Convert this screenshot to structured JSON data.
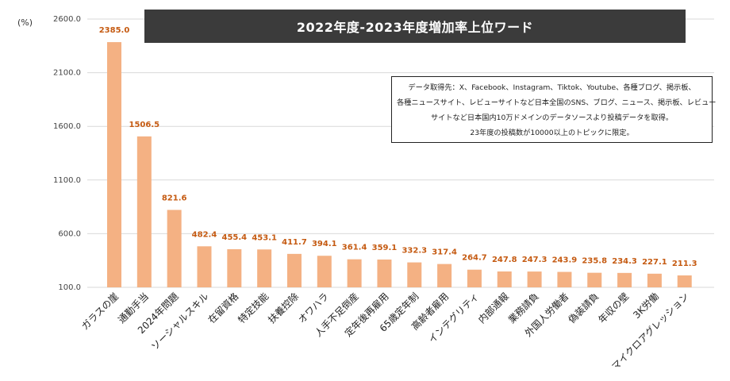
{
  "unit_label": "(%)",
  "colors": {
    "bar": "#f4b183",
    "value_label": "#c55a11",
    "grid": "#d9d9d9",
    "title_bg": "#3b3b3b"
  },
  "note": [
    "データ取得先：X、Facebook、Instagram、Tiktok、Youtube、各種ブログ、掲示板、",
    "各種ニュースサイト、レビューサイトなど日本全国のSNS、ブログ、ニュース、掲示板、レビュー",
    "サイトなど日本国内10万ドメインのデータソースより投稿データを取得。",
    "23年度の投稿数が10000以上のトピックに限定。"
  ],
  "chart_data": {
    "type": "bar",
    "title": "2022年度-2023年度増加率上位ワード",
    "xlabel": "",
    "ylabel": "(%)",
    "ylim": [
      100,
      2600
    ],
    "yticks": [
      "100.0",
      "600.0",
      "1100.0",
      "1600.0",
      "2100.0",
      "2600.0"
    ],
    "ytick_values": [
      100,
      600,
      1100,
      1600,
      2100,
      2600
    ],
    "grid": true,
    "categories": [
      "ガラスの崖",
      "通勤手当",
      "2024年問題",
      "ソーシャルスキル",
      "在留資格",
      "特定技能",
      "扶養控除",
      "オワハラ",
      "人手不足倒産",
      "定年後再雇用",
      "65歳定年制",
      "高齢者雇用",
      "インテグリティ",
      "内部通報",
      "業務請負",
      "外国人労働者",
      "偽装請負",
      "年収の壁",
      "3K労働",
      "マイクロアグレッション"
    ],
    "values": [
      2385.0,
      1506.5,
      821.6,
      482.4,
      455.4,
      453.1,
      411.7,
      394.1,
      361.4,
      359.1,
      332.3,
      317.4,
      264.7,
      247.8,
      247.3,
      243.9,
      235.8,
      234.3,
      227.1,
      211.3
    ],
    "value_labels": [
      "2385.0",
      "1506.5",
      "821.6",
      "482.4",
      "455.4",
      "453.1",
      "411.7",
      "394.1",
      "361.4",
      "359.1",
      "332.3",
      "317.4",
      "264.7",
      "247.8",
      "247.3",
      "243.9",
      "235.8",
      "234.3",
      "227.1",
      "211.3"
    ]
  }
}
